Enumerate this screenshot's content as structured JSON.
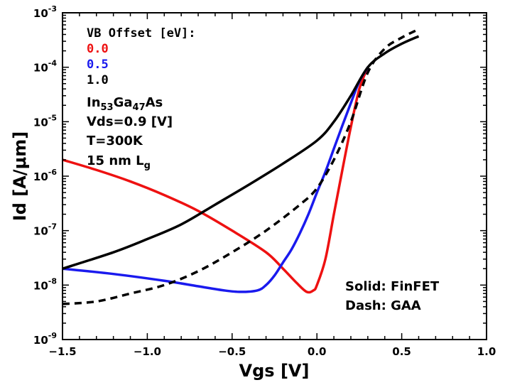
{
  "chart_data": {
    "type": "line",
    "xlabel": "Vgs [V]",
    "ylabel": "Id [A/μm]",
    "xlim": [
      -1.5,
      1.0
    ],
    "ylim_log10": [
      -9,
      -3
    ],
    "x_ticks": [
      {
        "value": -1.5,
        "label": "−1.5"
      },
      {
        "value": -1.0,
        "label": "−1.0"
      },
      {
        "value": -0.5,
        "label": "−0.5"
      },
      {
        "value": 0.0,
        "label": "0.0"
      },
      {
        "value": 0.5,
        "label": "0.5"
      },
      {
        "value": 1.0,
        "label": "1.0"
      }
    ],
    "y_ticks": [
      {
        "exp": -9,
        "base": "10",
        "sup": "-9"
      },
      {
        "exp": -8,
        "base": "10",
        "sup": "-8"
      },
      {
        "exp": -7,
        "base": "10",
        "sup": "-7"
      },
      {
        "exp": -6,
        "base": "10",
        "sup": "-6"
      },
      {
        "exp": -5,
        "base": "10",
        "sup": "-5"
      },
      {
        "exp": -4,
        "base": "10",
        "sup": "-4"
      },
      {
        "exp": -3,
        "base": "10",
        "sup": "-3"
      }
    ],
    "series": [
      {
        "name": "VB Offset 0.0 eV (FinFET)",
        "color": "#ee1111",
        "style": "solid",
        "x": [
          -1.5,
          -1.3,
          -1.1,
          -0.9,
          -0.7,
          -0.5,
          -0.3,
          -0.2,
          -0.12,
          -0.06,
          -0.02,
          0.0,
          0.05,
          0.1,
          0.15,
          0.2,
          0.25,
          0.3
        ],
        "y": [
          2e-06,
          1.3e-06,
          8e-07,
          4.5e-07,
          2.3e-07,
          1e-07,
          4e-08,
          2e-08,
          1.1e-08,
          7.5e-09,
          8e-09,
          1e-08,
          3e-08,
          2e-07,
          1.3e-06,
          8e-06,
          4e-05,
          0.0001
        ]
      },
      {
        "name": "VB Offset 0.5 eV (FinFET)",
        "color": "#1a1aee",
        "style": "solid",
        "x": [
          -1.5,
          -1.2,
          -0.9,
          -0.7,
          -0.55,
          -0.45,
          -0.35,
          -0.3,
          -0.25,
          -0.2,
          -0.15,
          -0.1,
          -0.05,
          0.0,
          0.05,
          0.1,
          0.15,
          0.2,
          0.25,
          0.3
        ],
        "y": [
          2e-08,
          1.6e-08,
          1.2e-08,
          9.5e-09,
          8e-09,
          7.5e-09,
          8e-09,
          1e-08,
          1.5e-08,
          2.6e-08,
          4.5e-08,
          9e-08,
          2e-07,
          5e-07,
          1.2e-06,
          3.2e-06,
          8.5e-06,
          2.2e-05,
          5.5e-05,
          0.0001
        ]
      },
      {
        "name": "VB Offset 1.0 eV (FinFET)",
        "color": "#000000",
        "style": "solid",
        "x": [
          -1.5,
          -1.2,
          -1.0,
          -0.8,
          -0.6,
          -0.4,
          -0.2,
          0.0,
          0.1,
          0.2,
          0.3,
          0.4,
          0.5,
          0.6
        ],
        "y": [
          2e-08,
          4e-08,
          7e-08,
          1.3e-07,
          3e-07,
          7e-07,
          1.7e-06,
          4.5e-06,
          1e-05,
          3e-05,
          0.0001,
          0.00018,
          0.00027,
          0.00037
        ]
      },
      {
        "name": "VB Offset 1.0 eV (GAA)",
        "color": "#000000",
        "style": "dash",
        "x": [
          -1.5,
          -1.3,
          -1.1,
          -0.9,
          -0.7,
          -0.5,
          -0.3,
          -0.1,
          0.0,
          0.1,
          0.2,
          0.3,
          0.4,
          0.5,
          0.6
        ],
        "y": [
          4.5e-09,
          5e-09,
          7e-09,
          1e-08,
          1.8e-08,
          4e-08,
          1e-07,
          3e-07,
          6e-07,
          2e-06,
          1e-05,
          8e-05,
          0.00022,
          0.00035,
          0.0005
        ]
      }
    ],
    "annotations": {
      "title_line": "VB Offset [eV]:",
      "offset_00": "0.0",
      "offset_05": "0.5",
      "offset_10": "1.0",
      "material_in": "In",
      "material_in_sub": "53",
      "material_ga": "Ga",
      "material_ga_sub": "47",
      "material_as": "As",
      "vds": "Vds=0.9 [V]",
      "temp": "T=300K",
      "lg_main": "15 nm L",
      "lg_sub": "g",
      "solid_note": "Solid: FinFET",
      "dash_note": "Dash: GAA"
    },
    "grid": false,
    "colors": {
      "red": "#ee1111",
      "blue": "#1a1aee",
      "black": "#000000"
    }
  }
}
